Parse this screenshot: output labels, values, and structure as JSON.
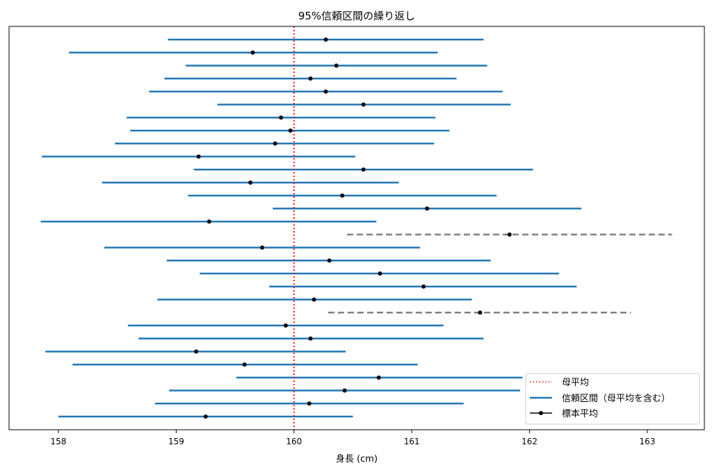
{
  "chart_data": {
    "type": "errorbar",
    "title": "95%信頼区間の繰り返し",
    "xlabel": "身長 (cm)",
    "ylabel": "",
    "xlim": [
      157.6,
      163.5
    ],
    "xticks": [
      158,
      159,
      160,
      161,
      162,
      163
    ],
    "population_mean": 160,
    "colors": {
      "contains": "#1f77b4",
      "misses": "#808080",
      "mean_line": "#ff0000",
      "point": "#000000"
    },
    "legend": {
      "position": "lower-right",
      "entries": [
        "母平均",
        "信頼区間（母平均を含む）",
        "標本平均"
      ]
    },
    "intervals": [
      {
        "lower": 158.93,
        "mean": 160.27,
        "upper": 161.61
      },
      {
        "lower": 158.09,
        "mean": 159.65,
        "upper": 161.22
      },
      {
        "lower": 159.08,
        "mean": 160.36,
        "upper": 161.64
      },
      {
        "lower": 158.9,
        "mean": 160.14,
        "upper": 161.38
      },
      {
        "lower": 158.77,
        "mean": 160.27,
        "upper": 161.77
      },
      {
        "lower": 159.35,
        "mean": 160.59,
        "upper": 161.84
      },
      {
        "lower": 158.58,
        "mean": 159.89,
        "upper": 161.2
      },
      {
        "lower": 158.61,
        "mean": 159.97,
        "upper": 161.32
      },
      {
        "lower": 158.48,
        "mean": 159.84,
        "upper": 161.19
      },
      {
        "lower": 157.86,
        "mean": 159.19,
        "upper": 160.52
      },
      {
        "lower": 159.15,
        "mean": 160.59,
        "upper": 162.03
      },
      {
        "lower": 158.37,
        "mean": 159.63,
        "upper": 160.89
      },
      {
        "lower": 159.1,
        "mean": 160.41,
        "upper": 161.72
      },
      {
        "lower": 159.82,
        "mean": 161.13,
        "upper": 162.44
      },
      {
        "lower": 157.85,
        "mean": 159.28,
        "upper": 160.7
      },
      {
        "lower": 160.45,
        "mean": 161.83,
        "upper": 163.21
      },
      {
        "lower": 158.39,
        "mean": 159.73,
        "upper": 161.07
      },
      {
        "lower": 158.92,
        "mean": 160.3,
        "upper": 161.67
      },
      {
        "lower": 159.2,
        "mean": 160.73,
        "upper": 162.25
      },
      {
        "lower": 159.79,
        "mean": 161.1,
        "upper": 162.4
      },
      {
        "lower": 158.84,
        "mean": 160.17,
        "upper": 161.51
      },
      {
        "lower": 160.29,
        "mean": 161.58,
        "upper": 162.86
      },
      {
        "lower": 158.59,
        "mean": 159.93,
        "upper": 161.27
      },
      {
        "lower": 158.68,
        "mean": 160.14,
        "upper": 161.61
      },
      {
        "lower": 157.89,
        "mean": 159.17,
        "upper": 160.44
      },
      {
        "lower": 158.12,
        "mean": 159.58,
        "upper": 161.05
      },
      {
        "lower": 159.51,
        "mean": 160.72,
        "upper": 161.94
      },
      {
        "lower": 158.94,
        "mean": 160.43,
        "upper": 161.92
      },
      {
        "lower": 158.82,
        "mean": 160.13,
        "upper": 161.44
      },
      {
        "lower": 158.0,
        "mean": 159.25,
        "upper": 160.5
      }
    ]
  }
}
